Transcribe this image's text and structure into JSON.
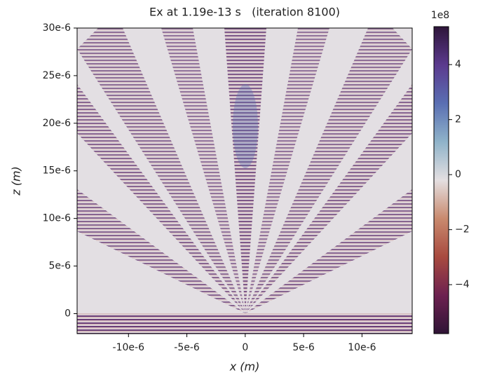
{
  "chart_data": {
    "type": "heatmap",
    "title": "Ex at 1.19e-13 s   (iteration 8100)",
    "x_label": "x (m)",
    "y_label": "z (m)",
    "xlim": [
      -1.44e-05,
      1.43e-05
    ],
    "ylim": [
      -2.1e-06,
      3e-05
    ],
    "xticks": [
      {
        "value": -1e-05,
        "label": "-10e-6"
      },
      {
        "value": -5e-06,
        "label": "-5e-6"
      },
      0,
      {
        "value": 5e-06,
        "label": "5e-6"
      },
      {
        "value": 1e-05,
        "label": "10e-6"
      }
    ],
    "yticks": [
      0,
      {
        "value": 5e-06,
        "label": "5e-6"
      },
      {
        "value": 1e-05,
        "label": "10e-6"
      },
      {
        "value": 1.5e-05,
        "label": "15e-6"
      },
      {
        "value": 2e-05,
        "label": "20e-6"
      },
      {
        "value": 2.5e-05,
        "label": "25e-6"
      },
      {
        "value": 3e-05,
        "label": "30e-6"
      }
    ],
    "colorbar": {
      "offset_label": "1e8",
      "clim": [
        -5.78,
        5.38
      ],
      "ticks": [
        {
          "value": -4,
          "label": "−4"
        },
        {
          "value": -2,
          "label": "−2"
        },
        0,
        2,
        4
      ],
      "colormap": [
        "#2f1436",
        "#6d2150",
        "#a84a3f",
        "#c98a6e",
        "#e4dfe1",
        "#8fb3c9",
        "#5a6fb3",
        "#5b3a8e",
        "#2e1539"
      ]
    }
  }
}
